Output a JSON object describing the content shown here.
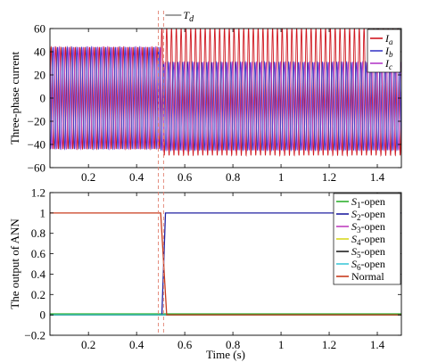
{
  "chart_data": [
    {
      "type": "line",
      "title": "",
      "xlabel": "",
      "ylabel": "Three-phase current",
      "xlim": [
        0.04,
        1.5
      ],
      "ylim": [
        -60,
        60
      ],
      "xticks": [
        0.2,
        0.4,
        0.6,
        0.8,
        1,
        1.2,
        1.4
      ],
      "xtick_labels": [
        "0.2",
        "0.4",
        "0.6",
        "0.8",
        "1",
        "1.2",
        "1.4"
      ],
      "yticks": [
        -60,
        -40,
        -20,
        0,
        20,
        40,
        60
      ],
      "ytick_labels": [
        "−60",
        "−40",
        "−20",
        "0",
        "20",
        "40",
        "60"
      ],
      "grid": false,
      "legend_position": "top-right",
      "annotation": {
        "text": "T",
        "subscript": "d",
        "x": 0.5
      },
      "fault_time": 0.5,
      "series": [
        {
          "name": "I_a",
          "label_main": "I",
          "label_sub": "a",
          "color": "#d01820",
          "before": {
            "amplitude": 44,
            "offset": 0
          },
          "after": {
            "amplitude": 55,
            "offset": 5.5
          }
        },
        {
          "name": "I_b",
          "label_main": "I",
          "label_sub": "b",
          "color": "#3c3cc8",
          "before": {
            "amplitude": 44,
            "offset": 0
          },
          "after": {
            "amplitude": 38,
            "offset": -7
          }
        },
        {
          "name": "I_c",
          "label_main": "I",
          "label_sub": "c",
          "color": "#b43cc8",
          "before": {
            "amplitude": 44,
            "offset": 0
          },
          "after": {
            "amplitude": 38,
            "offset": -7
          }
        }
      ]
    },
    {
      "type": "line",
      "title": "",
      "xlabel": "Time (s)",
      "ylabel": "The output of ANN",
      "xlim": [
        0.04,
        1.5
      ],
      "ylim": [
        -0.2,
        1.2
      ],
      "xticks": [
        0.2,
        0.4,
        0.6,
        0.8,
        1,
        1.2,
        1.4
      ],
      "xtick_labels": [
        "0.2",
        "0.4",
        "0.6",
        "0.8",
        "1",
        "1.2",
        "1.4"
      ],
      "yticks": [
        -0.2,
        0,
        0.2,
        0.4,
        0.6,
        0.8,
        1,
        1.2
      ],
      "ytick_labels": [
        "−0.2",
        "0",
        "0.2",
        "0.4",
        "0.6",
        "0.8",
        "1",
        "1.2"
      ],
      "grid": false,
      "legend_position": "top-right",
      "series": [
        {
          "name": "S1-open",
          "label_main": "S",
          "label_sub": "1",
          "label_suffix": "-open",
          "color": "#30b030",
          "x": [
            0.04,
            1.5
          ],
          "y": [
            0.01,
            0.01
          ]
        },
        {
          "name": "S2-open",
          "label_main": "S",
          "label_sub": "2",
          "label_suffix": "-open",
          "color": "#2020a0",
          "x": [
            0.04,
            0.505,
            0.52,
            1.5
          ],
          "y": [
            0,
            0,
            1,
            1
          ]
        },
        {
          "name": "S3-open",
          "label_main": "S",
          "label_sub": "3",
          "label_suffix": "-open",
          "color": "#c040c0",
          "x": [
            0.04,
            1.5
          ],
          "y": [
            0.0,
            0.0
          ]
        },
        {
          "name": "S4-open",
          "label_main": "S",
          "label_sub": "4",
          "label_suffix": "-open",
          "color": "#d8d820",
          "x": [
            0.04,
            1.5
          ],
          "y": [
            0.0,
            0.0
          ]
        },
        {
          "name": "S5-open",
          "label_main": "S",
          "label_sub": "5",
          "label_suffix": "-open",
          "color": "#202020",
          "x": [
            0.04,
            1.5
          ],
          "y": [
            0.0,
            0.0
          ]
        },
        {
          "name": "S6-open",
          "label_main": "S",
          "label_sub": "6",
          "label_suffix": "-open",
          "color": "#40c8d8",
          "x": [
            0.04,
            1.5
          ],
          "y": [
            0.0,
            0.0
          ]
        },
        {
          "name": "Normal",
          "label_main": "Normal",
          "label_sub": "",
          "label_suffix": "",
          "color": "#c83c1e",
          "x": [
            0.04,
            0.5,
            0.525,
            1.5
          ],
          "y": [
            1,
            1,
            0,
            0
          ]
        }
      ]
    }
  ]
}
